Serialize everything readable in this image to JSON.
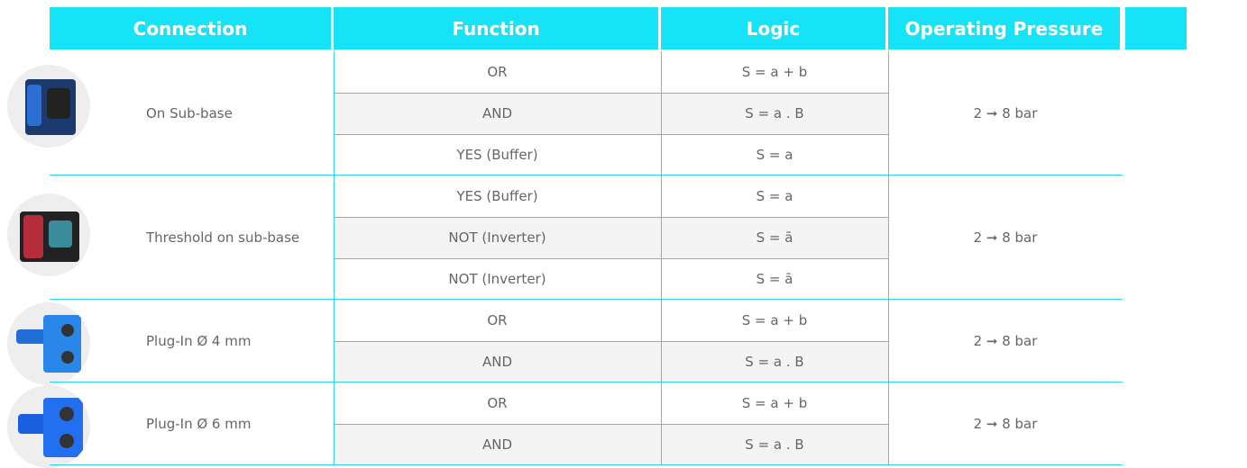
{
  "table": {
    "headers": [
      "Connection",
      "Function",
      "Logic",
      "Operating Pressure"
    ],
    "groups": [
      {
        "connection": "On Sub-base",
        "rows": [
          [
            "OR",
            "S = a + b"
          ],
          [
            "AND",
            "S = a . B"
          ],
          [
            "YES (Buffer)",
            "S = a"
          ]
        ],
        "pressure": "2 ➞ 8 bar"
      },
      {
        "connection": "Threshold on sub-base",
        "rows": [
          [
            "YES (Buffer)",
            "S = a"
          ],
          [
            "NOT (Inverter)",
            "S = ā"
          ],
          [
            "NOT (Inverter)",
            "S = ā"
          ]
        ],
        "pressure": "2 ➞ 8 bar"
      },
      {
        "connection": "Plug-In Ø 4 mm",
        "rows": [
          [
            "OR",
            "S = a + b"
          ],
          [
            "AND",
            "S = a . B"
          ]
        ],
        "pressure": "2 ➞ 8 bar"
      },
      {
        "connection": "Plug-In Ø 6 mm",
        "rows": [
          [
            "OR",
            "S = a + b"
          ],
          [
            "AND",
            "S = a . B"
          ]
        ],
        "pressure": "2 ➞ 8 bar"
      }
    ]
  }
}
